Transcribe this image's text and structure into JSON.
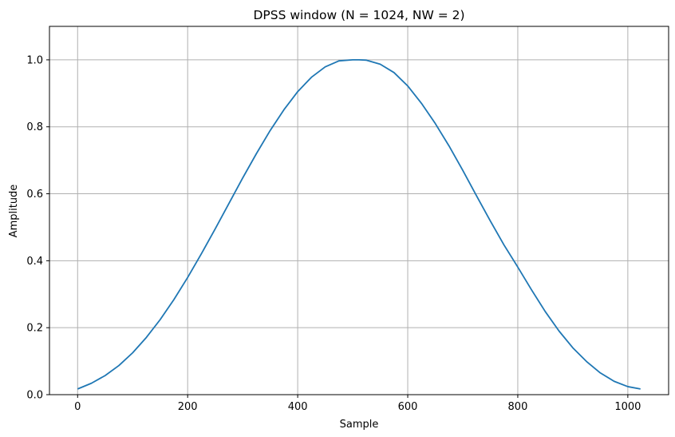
{
  "chart_data": {
    "type": "line",
    "title": "DPSS window (N = 1024, NW = 2)",
    "xlabel": "Sample",
    "ylabel": "Amplitude",
    "xlim": [
      -51.15,
      1074.15
    ],
    "ylim": [
      0,
      1.1
    ],
    "x_ticks": [
      0,
      200,
      400,
      600,
      800,
      1000
    ],
    "y_ticks": [
      0.0,
      0.2,
      0.4,
      0.6,
      0.8,
      1.0
    ],
    "x_tick_labels": [
      "0",
      "200",
      "400",
      "600",
      "800",
      "1000"
    ],
    "y_tick_labels": [
      "0.0",
      "0.2",
      "0.4",
      "0.6",
      "0.8",
      "1.0"
    ],
    "grid": true,
    "line_color": "#1f77b4",
    "grid_color": "#b0b0b0",
    "series": [
      {
        "x": [
          0,
          25,
          50,
          75,
          100,
          125,
          150,
          175,
          200,
          225,
          250,
          275,
          300,
          325,
          350,
          375,
          400,
          425,
          450,
          475,
          500,
          511.5,
          525,
          550,
          575,
          600,
          625,
          650,
          675,
          700,
          725,
          750,
          775,
          800,
          825,
          850,
          875,
          900,
          925,
          950,
          975,
          1000,
          1023
        ],
        "y": [
          0.017,
          0.034,
          0.057,
          0.087,
          0.125,
          0.171,
          0.224,
          0.284,
          0.35,
          0.421,
          0.495,
          0.571,
          0.647,
          0.72,
          0.789,
          0.851,
          0.905,
          0.948,
          0.979,
          0.997,
          1.0,
          1.0,
          0.999,
          0.987,
          0.962,
          0.922,
          0.87,
          0.81,
          0.743,
          0.67,
          0.594,
          0.519,
          0.447,
          0.381,
          0.313,
          0.248,
          0.19,
          0.14,
          0.099,
          0.065,
          0.04,
          0.024,
          0.017
        ]
      }
    ]
  }
}
